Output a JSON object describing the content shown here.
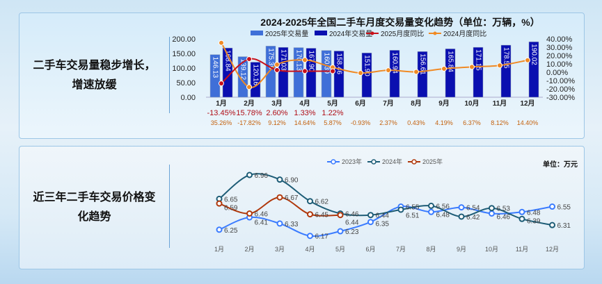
{
  "panel1": {
    "side_text": "二手车交易量稳步增长，增速放缓"
  },
  "panel2": {
    "side_text": "近三年二手车交易价格变化趋势",
    "unit": "单位：万元"
  },
  "colors": {
    "bar2025": "#3f6fd8",
    "bar2024": "#0a0fb0",
    "yoy2025": "#c8101a",
    "yoy2024": "#f08a24",
    "p2023": "#3a7bff",
    "p2024": "#1d5c76",
    "p2025": "#b0380c"
  },
  "chart_data": [
    {
      "type": "bar",
      "title": "2024-2025年全国二手车月度交易量变化趋势（单位：万辆，%）",
      "categories": [
        "1月",
        "2月",
        "3月",
        "4月",
        "5月",
        "6月",
        "7月",
        "8月",
        "9月",
        "10月",
        "11月",
        "12月"
      ],
      "ylim": [
        0,
        200
      ],
      "yticks": [
        "0.00",
        "50.00",
        "100.00",
        "150.00",
        "200.00"
      ],
      "y2lim": [
        -30,
        40
      ],
      "y2ticks": [
        "-30.00%",
        "-20.00%",
        "-10.00%",
        "0.00%",
        "10.00%",
        "20.00%",
        "30.00%",
        "40.00%"
      ],
      "legend_position": "top",
      "series": [
        {
          "name": "2025年交易量",
          "kind": "bar",
          "values": [
            146.13,
            139.12,
            175.39,
            170.13,
            160.39,
            null,
            null,
            null,
            null,
            null,
            null,
            null
          ],
          "labels": [
            "146.13",
            "139.12",
            "175.39",
            "170.13",
            "160.39"
          ]
        },
        {
          "name": "2024年交易量",
          "kind": "bar",
          "values": [
            168.84,
            120.16,
            171.03,
            167.9,
            158.46,
            151.9,
            160.94,
            156.61,
            165.84,
            171.15,
            178.55,
            190.02
          ],
          "labels": [
            "168.84",
            "120.16",
            "171.03",
            "167.90",
            "158.46",
            "151.90",
            "160.94",
            "156.61",
            "165.84",
            "171.15",
            "178.55",
            "190.02"
          ]
        },
        {
          "name": "2025月度同比",
          "kind": "line",
          "axis": "right",
          "values": [
            -13.45,
            15.78,
            2.6,
            1.33,
            1.22,
            null,
            null,
            null,
            null,
            null,
            null,
            null
          ],
          "labels": [
            "-13.45%",
            "15.78%",
            "2.60%",
            "1.33%",
            "1.22%"
          ]
        },
        {
          "name": "2024月度同比",
          "kind": "line",
          "axis": "right",
          "values": [
            35.26,
            -17.82,
            9.12,
            14.64,
            5.87,
            -0.93,
            2.37,
            0.43,
            4.19,
            6.37,
            8.12,
            14.4
          ],
          "labels": [
            "35.26%",
            "-17.82%",
            "9.12%",
            "14.64%",
            "5.87%",
            "-0.93%",
            "2.37%",
            "0.43%",
            "4.19%",
            "6.37%",
            "8.12%",
            "14.40%"
          ]
        }
      ]
    },
    {
      "type": "line",
      "title": "",
      "categories": [
        "1月",
        "2月",
        "3月",
        "4月",
        "5月",
        "6月",
        "7月",
        "8月",
        "9月",
        "10月",
        "11月",
        "12月"
      ],
      "ylabel": "单位：万元",
      "legend_position": "top",
      "series": [
        {
          "name": "2023年",
          "values": [
            6.25,
            6.41,
            6.33,
            6.17,
            6.23,
            6.35,
            6.55,
            6.48,
            6.54,
            6.46,
            6.48,
            6.55
          ]
        },
        {
          "name": "2024年",
          "values": [
            6.65,
            6.96,
            6.9,
            6.62,
            6.46,
            6.44,
            6.51,
            6.56,
            6.42,
            6.53,
            6.39,
            6.31
          ]
        },
        {
          "name": "2025年",
          "values": [
            6.59,
            6.46,
            6.67,
            6.45,
            6.44,
            null,
            null,
            null,
            null,
            null,
            null,
            null
          ]
        }
      ]
    }
  ]
}
